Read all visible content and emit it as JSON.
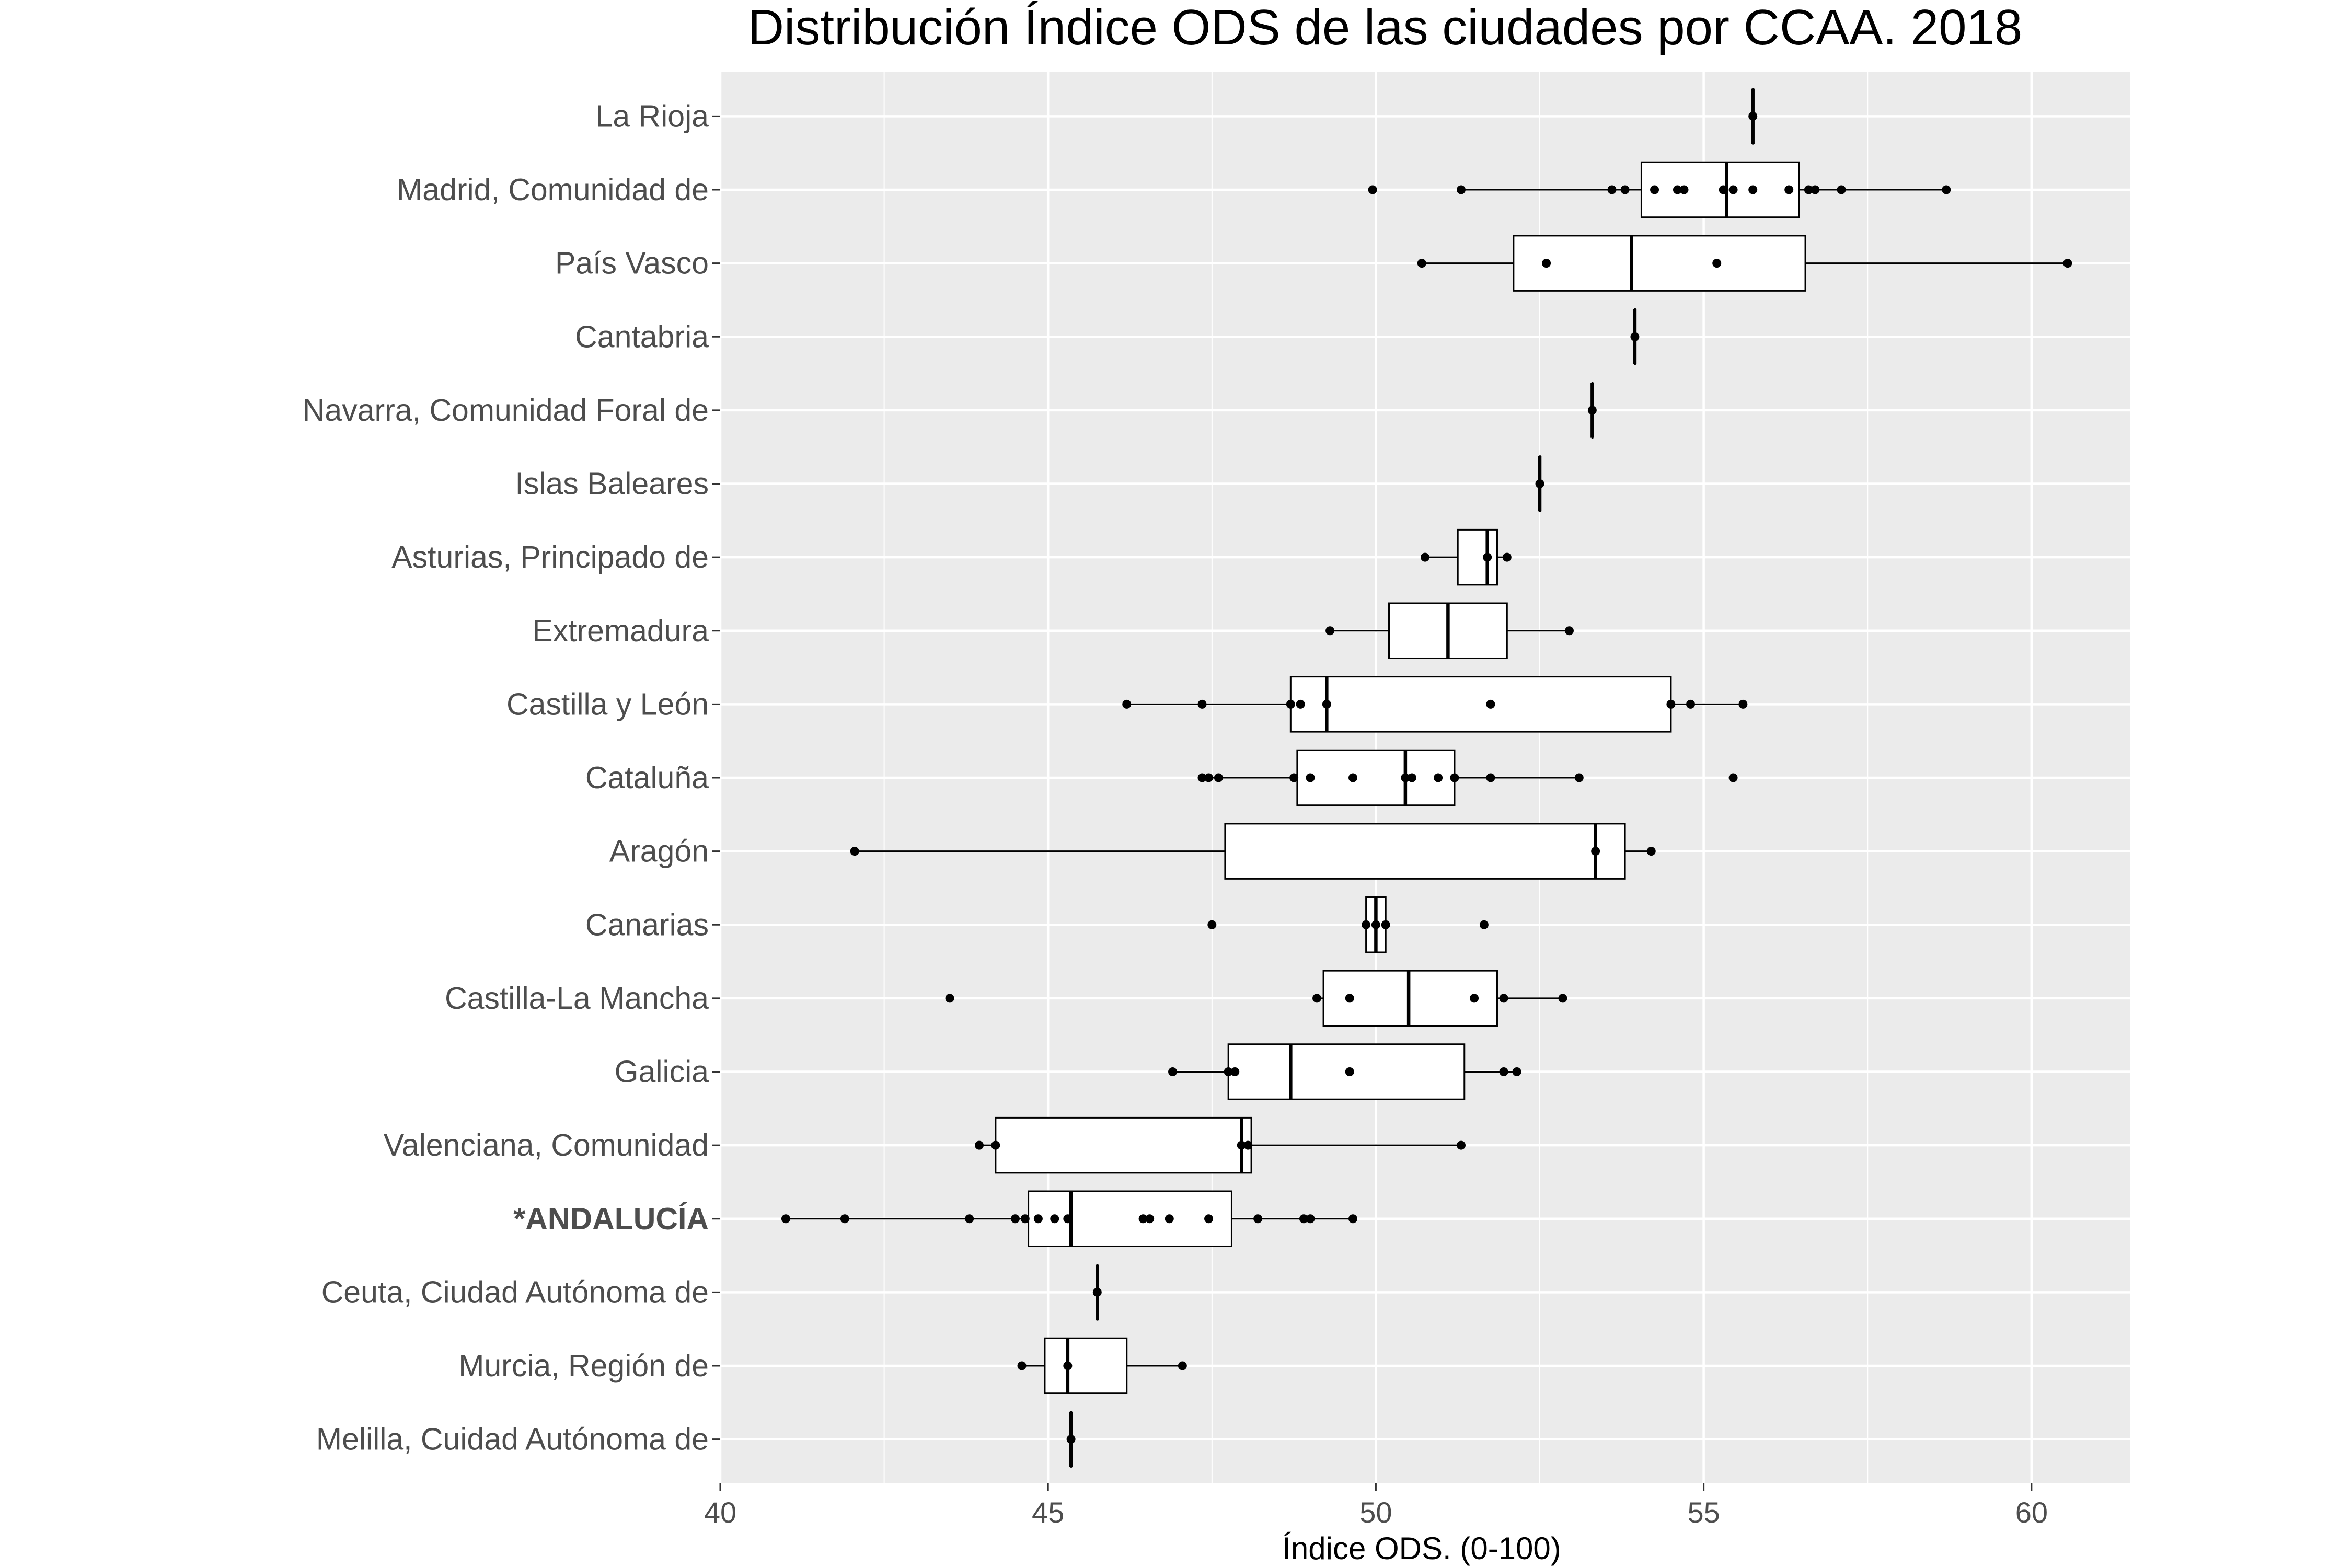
{
  "chart_data": {
    "type": "box",
    "title": "Distribución Índice ODS de las ciudades por CCAA. 2018",
    "xlabel": "Índice ODS. (0-100)",
    "ylabel": "",
    "xlim": [
      40,
      61.5
    ],
    "xticks": [
      40,
      45,
      50,
      55,
      60
    ],
    "grid": true,
    "panel_background": "#ebebeb",
    "grid_color": "#ffffff",
    "box_fill": "#ffffff",
    "line_color": "#000000",
    "categories": [
      {
        "name": "La Rioja",
        "bold": false,
        "box": [
          55.75,
          55.75,
          55.75,
          55.75,
          55.75
        ],
        "points": [
          55.75
        ]
      },
      {
        "name": "Madrid, Comunidad de",
        "bold": false,
        "box": [
          51.3,
          54.05,
          55.35,
          56.45,
          58.7
        ],
        "points": [
          49.95,
          51.3,
          53.6,
          53.8,
          54.25,
          54.6,
          54.7,
          55.3,
          55.45,
          55.75,
          56.3,
          56.6,
          56.7,
          57.1,
          58.7
        ]
      },
      {
        "name": "País Vasco",
        "bold": false,
        "box": [
          50.7,
          52.1,
          53.9,
          56.55,
          60.55
        ],
        "points": [
          50.7,
          52.6,
          55.2,
          60.55
        ]
      },
      {
        "name": "Cantabria",
        "bold": false,
        "box": [
          53.95,
          53.95,
          53.95,
          53.95,
          53.95
        ],
        "points": [
          53.95
        ]
      },
      {
        "name": "Navarra, Comunidad Foral de",
        "bold": false,
        "box": [
          53.3,
          53.3,
          53.3,
          53.3,
          53.3
        ],
        "points": [
          53.3
        ]
      },
      {
        "name": "Islas Baleares",
        "bold": false,
        "box": [
          52.5,
          52.5,
          52.5,
          52.5,
          52.5
        ],
        "points": [
          52.5
        ]
      },
      {
        "name": "Asturias, Principado de",
        "bold": false,
        "box": [
          50.75,
          51.25,
          51.7,
          51.85,
          52.0
        ],
        "points": [
          50.75,
          51.7,
          52.0
        ]
      },
      {
        "name": "Extremadura",
        "bold": false,
        "box": [
          49.3,
          50.2,
          51.1,
          52.0,
          52.95
        ],
        "points": [
          49.3,
          52.95
        ]
      },
      {
        "name": "Castilla y León",
        "bold": false,
        "box": [
          46.2,
          48.7,
          49.25,
          54.5,
          55.6
        ],
        "points": [
          46.2,
          47.35,
          48.7,
          48.85,
          49.25,
          51.75,
          54.5,
          54.8,
          55.6
        ]
      },
      {
        "name": "Cataluña",
        "bold": false,
        "box": [
          47.35,
          48.8,
          50.45,
          51.2,
          53.1
        ],
        "points": [
          47.35,
          47.45,
          47.6,
          48.75,
          49.0,
          49.65,
          50.45,
          50.55,
          50.95,
          51.2,
          51.75,
          53.1,
          55.45
        ]
      },
      {
        "name": "Aragón",
        "bold": false,
        "box": [
          42.05,
          47.7,
          53.35,
          53.8,
          54.2
        ],
        "points": [
          42.05,
          53.35,
          54.2
        ]
      },
      {
        "name": "Canarias",
        "bold": false,
        "box": [
          49.85,
          49.85,
          50.0,
          50.15,
          50.15
        ],
        "points": [
          47.5,
          49.85,
          50.0,
          50.15,
          51.65
        ]
      },
      {
        "name": "Castilla-La Mancha",
        "bold": false,
        "box": [
          49.1,
          49.2,
          50.5,
          51.85,
          52.85
        ],
        "points": [
          43.5,
          49.1,
          49.6,
          51.5,
          51.95,
          52.85
        ]
      },
      {
        "name": "Galicia",
        "bold": false,
        "box": [
          46.9,
          47.75,
          48.7,
          51.35,
          52.15
        ],
        "points": [
          46.9,
          47.75,
          47.85,
          49.6,
          51.95,
          52.15
        ]
      },
      {
        "name": "Valenciana, Comunidad",
        "bold": false,
        "box": [
          43.95,
          44.2,
          47.95,
          48.1,
          51.3
        ],
        "points": [
          43.95,
          44.2,
          47.95,
          48.05,
          51.3
        ]
      },
      {
        "name": "*ANDALUCÍA",
        "bold": true,
        "box": [
          41.0,
          44.7,
          45.35,
          47.8,
          49.65
        ],
        "points": [
          41.0,
          41.9,
          43.8,
          44.5,
          44.65,
          44.85,
          45.1,
          45.3,
          46.45,
          46.55,
          46.85,
          47.45,
          48.2,
          48.9,
          49.0,
          49.65
        ]
      },
      {
        "name": "Ceuta, Ciudad Autónoma de",
        "bold": false,
        "box": [
          45.75,
          45.75,
          45.75,
          45.75,
          45.75
        ],
        "points": [
          45.75
        ]
      },
      {
        "name": "Murcia, Región de",
        "bold": false,
        "box": [
          44.6,
          44.95,
          45.3,
          46.2,
          47.05
        ],
        "points": [
          44.6,
          45.3,
          47.05
        ]
      },
      {
        "name": "Melilla, Cuidad Autónoma de",
        "bold": false,
        "box": [
          45.35,
          45.35,
          45.35,
          45.35,
          45.35
        ],
        "points": [
          45.35
        ]
      }
    ]
  }
}
